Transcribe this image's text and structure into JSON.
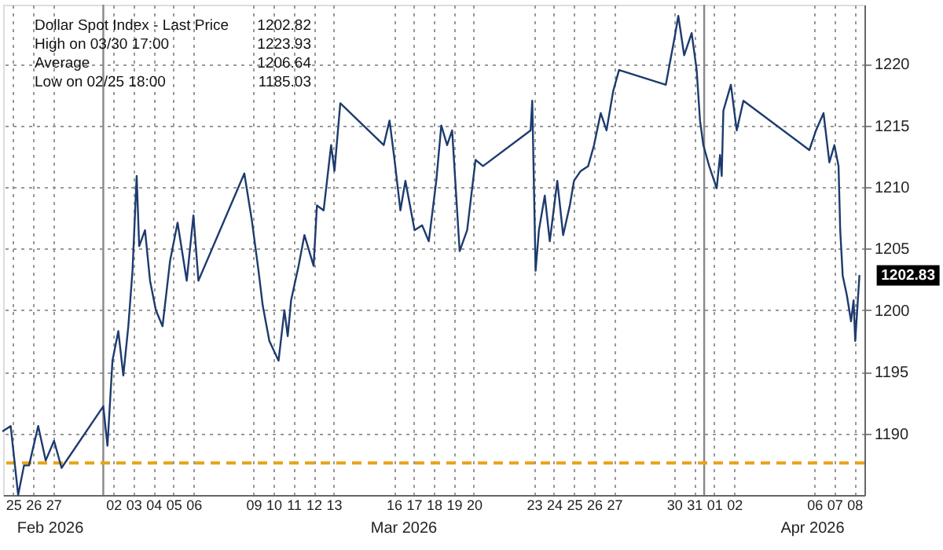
{
  "chart_data": {
    "type": "line",
    "series": [
      {
        "name": "Dollar Spot Index - Last Price",
        "color": "#1d3b6e",
        "x": [
          "2026-02-25T00:00",
          "2026-02-25T09:00",
          "2026-02-25T18:00",
          "2026-02-26T01:00",
          "2026-02-26T07:00",
          "2026-02-26T18:00",
          "2026-02-27T03:00",
          "2026-02-27T13:00",
          "2026-02-27T22:00",
          "2026-03-02T00:00",
          "2026-03-02T05:00",
          "2026-03-02T11:00",
          "2026-03-02T18:00",
          "2026-03-03T00:00",
          "2026-03-03T06:00",
          "2026-03-03T11:00",
          "2026-03-03T16:00",
          "2026-03-03T19:00",
          "2026-03-04T02:00",
          "2026-03-04T08:00",
          "2026-03-04T15:00",
          "2026-03-04T23:00",
          "2026-03-05T08:00",
          "2026-03-05T17:00",
          "2026-03-06T04:00",
          "2026-03-06T12:00",
          "2026-03-06T18:00",
          "2026-03-09T01:00",
          "2026-03-09T10:00",
          "2026-03-09T18:00",
          "2026-03-09T23:00",
          "2026-03-10T07:00",
          "2026-03-10T18:00",
          "2026-03-11T01:00",
          "2026-03-11T05:00",
          "2026-03-11T09:00",
          "2026-03-11T18:00",
          "2026-03-12T01:00",
          "2026-03-12T12:00",
          "2026-03-12T16:00",
          "2026-03-13T00:00",
          "2026-03-13T09:00",
          "2026-03-13T13:00",
          "2026-03-13T20:00",
          "2026-03-16T00:00",
          "2026-03-16T07:00",
          "2026-03-16T13:00",
          "2026-03-16T20:00",
          "2026-03-17T02:00",
          "2026-03-17T13:00",
          "2026-03-17T22:00",
          "2026-03-18T06:00",
          "2026-03-18T15:00",
          "2026-03-18T21:00",
          "2026-03-19T04:00",
          "2026-03-19T10:00",
          "2026-03-19T19:00",
          "2026-03-20T04:00",
          "2026-03-20T14:00",
          "2026-03-20T23:00",
          "2026-03-23T08:00",
          "2026-03-23T10:00",
          "2026-03-23T14:00",
          "2026-03-23T18:00",
          "2026-03-24T01:00",
          "2026-03-24T07:00",
          "2026-03-24T16:00",
          "2026-03-24T23:00",
          "2026-03-25T07:00",
          "2026-03-25T12:00",
          "2026-03-25T20:00",
          "2026-03-26T05:00",
          "2026-03-26T12:00",
          "2026-03-26T20:00",
          "2026-03-27T03:00",
          "2026-03-27T11:00",
          "2026-03-27T18:00",
          "2026-03-30T02:00",
          "2026-03-30T13:00",
          "2026-03-30T17:00",
          "2026-03-31T00:00",
          "2026-03-31T09:00",
          "2026-03-31T15:00",
          "2026-03-31T19:00",
          "2026-03-31T23:00",
          "2026-04-01T06:00",
          "2026-04-01T15:00",
          "2026-04-01T19:00",
          "2026-04-01T21:00",
          "2026-04-01T23:00",
          "2026-04-02T08:00",
          "2026-04-02T15:00",
          "2026-04-02T23:00",
          "2026-04-06T06:00",
          "2026-04-06T14:00",
          "2026-04-06T23:00",
          "2026-04-07T06:00",
          "2026-04-07T12:00",
          "2026-04-07T17:00",
          "2026-04-07T19:00",
          "2026-04-07T22:00",
          "2026-04-08T03:00",
          "2026-04-08T08:00",
          "2026-04-08T11:00",
          "2026-04-08T13:00",
          "2026-04-08T18:00"
        ],
        "values": [
          1190.2,
          1190.6,
          1185.0,
          1187.4,
          1187.4,
          1190.6,
          1187.8,
          1189.4,
          1187.2,
          1192.2,
          1189.0,
          1195.9,
          1198.3,
          1194.7,
          1198.7,
          1203.2,
          1210.9,
          1205.2,
          1206.5,
          1202.4,
          1200.0,
          1198.7,
          1204.0,
          1207.1,
          1202.4,
          1207.7,
          1202.4,
          1211.1,
          1207.3,
          1203.2,
          1200.4,
          1197.5,
          1195.9,
          1200.0,
          1197.9,
          1200.8,
          1203.6,
          1206.1,
          1203.6,
          1208.5,
          1208.1,
          1213.4,
          1211.3,
          1216.8,
          1213.4,
          1215.4,
          1212.2,
          1208.1,
          1210.5,
          1206.5,
          1206.9,
          1205.6,
          1210.5,
          1215.0,
          1213.4,
          1214.6,
          1204.8,
          1206.5,
          1212.2,
          1211.7,
          1214.6,
          1217.0,
          1203.2,
          1206.5,
          1209.3,
          1205.6,
          1210.5,
          1206.1,
          1208.5,
          1210.5,
          1211.3,
          1211.7,
          1213.4,
          1216.0,
          1214.6,
          1217.8,
          1219.5,
          1218.3,
          1222.3,
          1223.9,
          1220.7,
          1222.5,
          1219.5,
          1215.4,
          1213.4,
          1211.7,
          1209.9,
          1212.6,
          1210.9,
          1216.2,
          1218.3,
          1214.6,
          1217.0,
          1213.0,
          1214.6,
          1216.0,
          1212.0,
          1213.4,
          1211.7,
          1206.5,
          1202.8,
          1201.2,
          1199.1,
          1200.8,
          1197.5,
          1202.8
        ]
      }
    ],
    "xlim": [
      "2026-02-25T00:00",
      "2026-04-09T00:00"
    ],
    "xticks": [
      {
        "value": "2026-02-25T12:00",
        "label": "25"
      },
      {
        "value": "2026-02-26T12:00",
        "label": "26"
      },
      {
        "value": "2026-02-27T12:00",
        "label": "27"
      },
      {
        "value": "2026-03-02T12:00",
        "label": "02"
      },
      {
        "value": "2026-03-03T12:00",
        "label": "03"
      },
      {
        "value": "2026-03-04T12:00",
        "label": "04"
      },
      {
        "value": "2026-03-05T12:00",
        "label": "05"
      },
      {
        "value": "2026-03-06T12:00",
        "label": "06"
      },
      {
        "value": "2026-03-09T12:00",
        "label": "09"
      },
      {
        "value": "2026-03-10T12:00",
        "label": "10"
      },
      {
        "value": "2026-03-11T12:00",
        "label": "11"
      },
      {
        "value": "2026-03-12T12:00",
        "label": "12"
      },
      {
        "value": "2026-03-13T12:00",
        "label": "13"
      },
      {
        "value": "2026-03-16T12:00",
        "label": "16"
      },
      {
        "value": "2026-03-17T12:00",
        "label": "17"
      },
      {
        "value": "2026-03-18T12:00",
        "label": "18"
      },
      {
        "value": "2026-03-19T12:00",
        "label": "19"
      },
      {
        "value": "2026-03-20T12:00",
        "label": "20"
      },
      {
        "value": "2026-03-23T12:00",
        "label": "23"
      },
      {
        "value": "2026-03-24T12:00",
        "label": "24"
      },
      {
        "value": "2026-03-25T12:00",
        "label": "25"
      },
      {
        "value": "2026-03-26T12:00",
        "label": "26"
      },
      {
        "value": "2026-03-27T12:00",
        "label": "27"
      },
      {
        "value": "2026-03-30T12:00",
        "label": "30"
      },
      {
        "value": "2026-03-31T12:00",
        "label": "31"
      },
      {
        "value": "2026-04-01T12:00",
        "label": "01"
      },
      {
        "value": "2026-04-02T12:00",
        "label": "02"
      },
      {
        "value": "2026-04-06T12:00",
        "label": "06"
      },
      {
        "value": "2026-04-07T12:00",
        "label": "07"
      },
      {
        "value": "2026-04-08T12:00",
        "label": "08"
      }
    ],
    "ylim": [
      1185,
      1224.8
    ],
    "yticks": [
      1190,
      1195,
      1200,
      1205,
      1210,
      1215,
      1220
    ],
    "grid": true,
    "legend": "top left",
    "line_style": "solid",
    "ref_lines": [
      {
        "axis": "y",
        "value": 1187.6,
        "color": "#e8a317",
        "line_style": "dashed"
      },
      {
        "axis": "x",
        "value": "2026-03-02T00:00",
        "color": "#888888",
        "line_style": "solid"
      },
      {
        "axis": "x",
        "value": "2026-04-01T00:00",
        "color": "#888888",
        "line_style": "solid"
      }
    ],
    "annotations": [
      "1202.82",
      "High on 03/30 17:00",
      "1223.93",
      "Average",
      "1206.64",
      "Low on 02/25 18:00",
      "1185.03",
      "Feb 2026",
      "Mar 2026",
      "Apr 2026",
      {
        "text": "1202.83",
        "x": "2026-04-08T18:00",
        "y": 1202.83
      }
    ]
  }
}
